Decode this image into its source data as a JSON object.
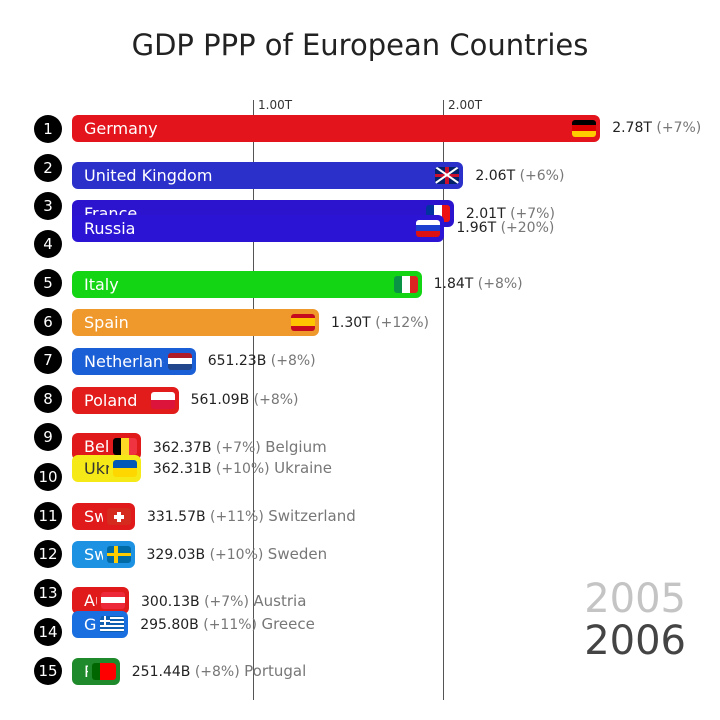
{
  "chart_data": {
    "type": "bar",
    "title": "GDP PPP of European Countries",
    "xlim": [
      0,
      2.8
    ],
    "x_unit": "trillion USD",
    "x_ticks": [
      {
        "value": 1.0,
        "label": "1.00T"
      },
      {
        "value": 2.0,
        "label": "2.00T"
      }
    ],
    "grid": true,
    "years": {
      "previous": "2005",
      "current": "2006"
    },
    "series": [
      {
        "rank": "1",
        "name": "Germany",
        "value": 2.78,
        "label": "2.78T",
        "change": "(+7%)",
        "color": "#e3141b",
        "flag": "germany"
      },
      {
        "rank": "2",
        "name": "United Kingdom",
        "value": 2.06,
        "label": "2.06T",
        "change": "(+6%)",
        "color": "#2a30c9",
        "flag": "uk"
      },
      {
        "rank": "3",
        "name": "France",
        "value": 2.01,
        "label": "2.01T",
        "change": "(+7%)",
        "color": "#2c14cf",
        "flag": "france"
      },
      {
        "rank": "4",
        "name": "Russia",
        "value": 1.96,
        "label": "1.96T",
        "change": "(+20%)",
        "color": "#2c14d4",
        "flag": "russia"
      },
      {
        "rank": "5",
        "name": "Italy",
        "value": 1.84,
        "label": "1.84T",
        "change": "(+8%)",
        "color": "#14d514",
        "flag": "italy"
      },
      {
        "rank": "6",
        "name": "Spain",
        "value": 1.3,
        "label": "1.30T",
        "change": "(+12%)",
        "color": "#ef982c",
        "flag": "spain"
      },
      {
        "rank": "7",
        "name": "Netherlands",
        "value": 0.65123,
        "label": "651.23B",
        "change": "(+8%)",
        "color": "#1a5fd6",
        "flag": "netherlands"
      },
      {
        "rank": "8",
        "name": "Poland",
        "value": 0.56109,
        "label": "561.09B",
        "change": "(+8%)",
        "color": "#e21b1b",
        "flag": "poland"
      },
      {
        "rank": "9",
        "name": "Belgium",
        "value": 0.36237,
        "label": "362.37B",
        "change": "(+7%)",
        "color": "#e01a1a",
        "flag": "belgium"
      },
      {
        "rank": "10",
        "name": "Ukraine",
        "value": 0.36231,
        "label": "362.31B",
        "change": "(+10%)",
        "color": "#f5ea18",
        "flag": "ukraine"
      },
      {
        "rank": "11",
        "name": "Switzerland",
        "value": 0.33157,
        "label": "331.57B",
        "change": "(+11%)",
        "color": "#e01a1a",
        "flag": "switzerland"
      },
      {
        "rank": "12",
        "name": "Sweden",
        "value": 0.32903,
        "label": "329.03B",
        "change": "(+10%)",
        "color": "#1d92e2",
        "flag": "sweden"
      },
      {
        "rank": "13",
        "name": "Austria",
        "value": 0.30013,
        "label": "300.13B",
        "change": "(+7%)",
        "color": "#e01a1a",
        "flag": "austria"
      },
      {
        "rank": "14",
        "name": "Greece",
        "value": 0.2958,
        "label": "295.80B",
        "change": "(+11%)",
        "color": "#1a6fe0",
        "flag": "greece"
      },
      {
        "rank": "15",
        "name": "Portugal",
        "value": 0.25144,
        "label": "251.44B",
        "change": "(+8%)",
        "color": "#1f8a2b",
        "flag": "portugal"
      }
    ]
  }
}
